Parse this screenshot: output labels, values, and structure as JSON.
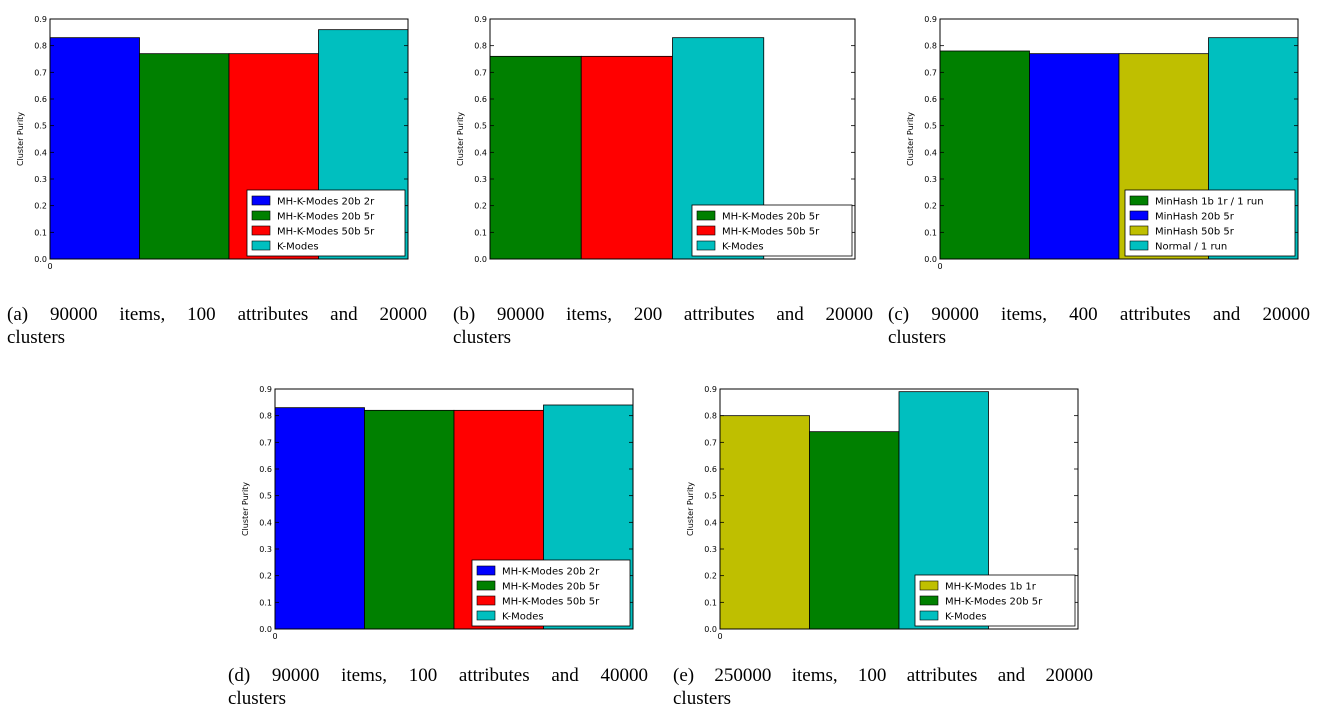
{
  "figure": {
    "panels": [
      {
        "caption": {
          "line1": "(a) 90000 items, 100 attributes and 20000",
          "line2": "clusters"
        },
        "chart_data": {
          "type": "bar",
          "ylabel": "Cluster Purity",
          "ylim": [
            0,
            0.9
          ],
          "yticks": [
            "0.0",
            "0.1",
            "0.2",
            "0.3",
            "0.4",
            "0.5",
            "0.6",
            "0.7",
            "0.8",
            "0.9"
          ],
          "xticks": [
            "0"
          ],
          "legend_position": "lower right",
          "series": [
            {
              "name": "MH-K-Modes 20b 2r",
              "color": "#0000ff",
              "value": 0.83
            },
            {
              "name": "MH-K-Modes 20b 5r",
              "color": "#008000",
              "value": 0.77
            },
            {
              "name": "MH-K-Modes 50b 5r",
              "color": "#ff0000",
              "value": 0.77
            },
            {
              "name": "K-Modes",
              "color": "#00bfbf",
              "value": 0.86
            }
          ]
        }
      },
      {
        "caption": {
          "line1": "(b) 90000 items, 200 attributes and 20000",
          "line2": "clusters"
        },
        "chart_data": {
          "type": "bar",
          "ylabel": "Cluster Purity",
          "ylim": [
            0,
            0.9
          ],
          "yticks": [
            "0.0",
            "0.1",
            "0.2",
            "0.3",
            "0.4",
            "0.5",
            "0.6",
            "0.7",
            "0.8",
            "0.9"
          ],
          "xticks": [],
          "legend_position": "lower right",
          "series": [
            {
              "name": "MH-K-Modes 20b 5r",
              "color": "#008000",
              "value": 0.76
            },
            {
              "name": "MH-K-Modes 50b 5r",
              "color": "#ff0000",
              "value": 0.76
            },
            {
              "name": "K-Modes",
              "color": "#00bfbf",
              "value": 0.83
            }
          ]
        }
      },
      {
        "caption": {
          "line1": "(c) 90000 items, 400 attributes and 20000",
          "line2": "clusters"
        },
        "chart_data": {
          "type": "bar",
          "ylabel": "Cluster Purity",
          "ylim": [
            0,
            0.9
          ],
          "yticks": [
            "0.0",
            "0.1",
            "0.2",
            "0.3",
            "0.4",
            "0.5",
            "0.6",
            "0.7",
            "0.8",
            "0.9"
          ],
          "xticks": [
            "0"
          ],
          "legend_position": "lower right",
          "series": [
            {
              "name": "MinHash 1b 1r / 1 run",
              "color": "#008000",
              "value": 0.78
            },
            {
              "name": "MinHash 20b 5r",
              "color": "#0000ff",
              "value": 0.77
            },
            {
              "name": "MinHash 50b 5r",
              "color": "#bfbf00",
              "value": 0.77
            },
            {
              "name": "Normal / 1 run",
              "color": "#00bfbf",
              "value": 0.83
            }
          ]
        }
      },
      {
        "caption": {
          "line1": "(d) 90000 items, 100 attributes and 40000",
          "line2": "clusters"
        },
        "chart_data": {
          "type": "bar",
          "ylabel": "Cluster Purity",
          "ylim": [
            0,
            0.9
          ],
          "yticks": [
            "0.0",
            "0.1",
            "0.2",
            "0.3",
            "0.4",
            "0.5",
            "0.6",
            "0.7",
            "0.8",
            "0.9"
          ],
          "xticks": [
            "0"
          ],
          "legend_position": "lower right",
          "series": [
            {
              "name": "MH-K-Modes 20b 2r",
              "color": "#0000ff",
              "value": 0.83
            },
            {
              "name": "MH-K-Modes 20b 5r",
              "color": "#008000",
              "value": 0.82
            },
            {
              "name": "MH-K-Modes 50b 5r",
              "color": "#ff0000",
              "value": 0.82
            },
            {
              "name": "K-Modes",
              "color": "#00bfbf",
              "value": 0.84
            }
          ]
        }
      },
      {
        "caption": {
          "line1": "(e) 250000 items, 100 attributes and 20000",
          "line2": "clusters"
        },
        "chart_data": {
          "type": "bar",
          "ylabel": "Cluster Purity",
          "ylim": [
            0,
            0.9
          ],
          "yticks": [
            "0.0",
            "0.1",
            "0.2",
            "0.3",
            "0.4",
            "0.5",
            "0.6",
            "0.7",
            "0.8",
            "0.9"
          ],
          "xticks": [
            "0"
          ],
          "legend_position": "lower right",
          "series": [
            {
              "name": "MH-K-Modes 1b 1r",
              "color": "#bfbf00",
              "value": 0.8
            },
            {
              "name": "MH-K-Modes 20b 5r",
              "color": "#008000",
              "value": 0.74
            },
            {
              "name": "K-Modes",
              "color": "#00bfbf",
              "value": 0.89
            }
          ]
        }
      }
    ]
  }
}
